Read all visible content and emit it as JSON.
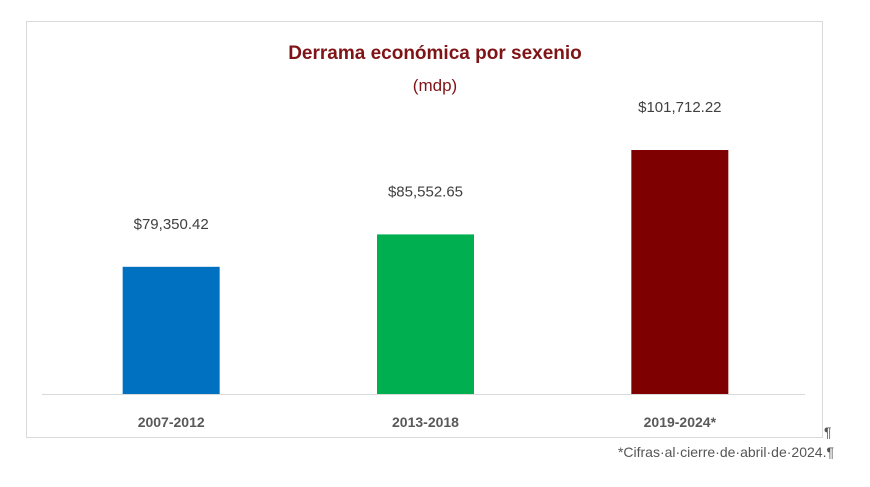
{
  "chart_data": {
    "type": "bar",
    "title": "Derrama económica por sexenio",
    "subtitle": "(mdp)",
    "categories": [
      "2007-2012",
      "2013-2018",
      "2019-2024*"
    ],
    "values": [
      79350.42,
      85552.65,
      101712.22
    ],
    "data_labels": [
      "$79,350.42",
      "$85,552.65",
      "$101,712.22"
    ],
    "colors": [
      "#0070c0",
      "#00b050",
      "#7f0000"
    ],
    "xlabel": "",
    "ylabel": "",
    "ylim": [
      55000,
      105000
    ],
    "grid": false,
    "legend": "none"
  },
  "footnote": "*Cifras·al·cierre·de·abril·de·2024.",
  "pilcrow": "¶"
}
